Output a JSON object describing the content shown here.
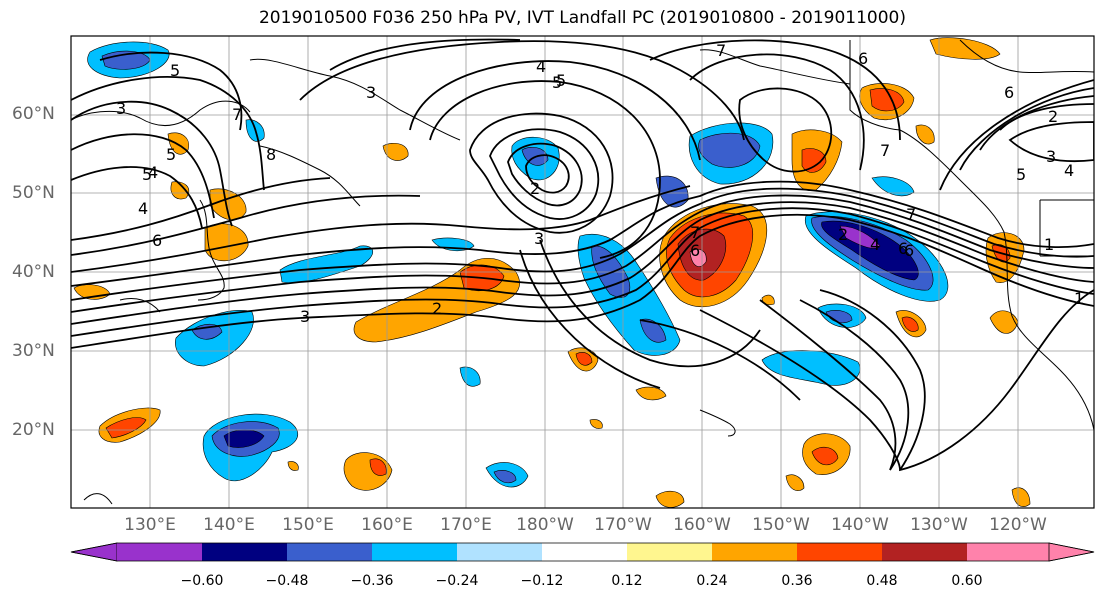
{
  "title": "2019010500 F036 250 hPa PV, IVT Landfall PC (2019010800 - 2019011000)",
  "lat_labels": [
    "60°N",
    "50°N",
    "40°N",
    "30°N",
    "20°N"
  ],
  "lon_labels": [
    "130°E",
    "140°E",
    "150°E",
    "160°E",
    "170°E",
    "180°W",
    "170°W",
    "160°W",
    "150°W",
    "140°W",
    "130°W",
    "120°W"
  ],
  "colorbar": {
    "colors": [
      "#9932cc",
      "#000080",
      "#3a5fcd",
      "#00bfff",
      "#b0e2ff",
      "#ffffff",
      "#fff68f",
      "#ffa500",
      "#ff4500",
      "#b22222",
      "#ff82ab"
    ],
    "ticks": [
      "−0.60",
      "−0.48",
      "−0.36",
      "−0.24",
      "−0.12",
      "0.12",
      "0.24",
      "0.36",
      "0.48",
      "0.60"
    ]
  },
  "contour_labels": [
    "7",
    "5",
    "6",
    "6",
    "4",
    "5",
    "3",
    "2",
    "3",
    "4",
    "5",
    "5",
    "3",
    "7",
    "8",
    "4",
    "2",
    "3",
    "6",
    "5",
    "2",
    "3",
    "7",
    "6",
    "7",
    "6",
    "2",
    "1",
    "5",
    "4",
    "4",
    "6",
    "7",
    "1"
  ]
}
